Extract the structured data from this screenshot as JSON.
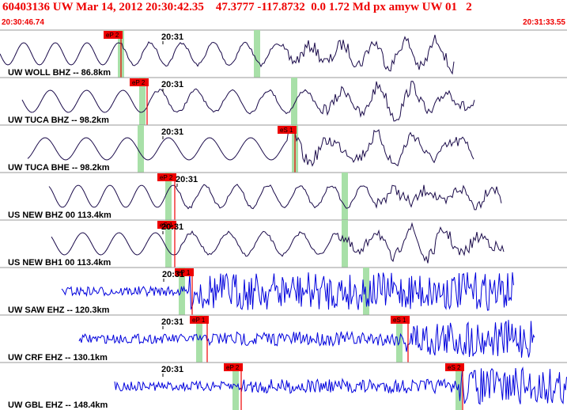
{
  "header": {
    "title": "60403136 UW Mar 14, 2012 20:30:42.35    47.3777 -117.8732  0.0 1.72 Md px amyw UW 01   2",
    "start_time": "20:30:46.74",
    "end_time": "20:31:33.55"
  },
  "colors": {
    "title": "#ee0000",
    "trace_dark": "#1a0a4a",
    "trace_blue": "#0000dd",
    "pick_flag": "#ee0000",
    "phase_window": "#a8e0a8",
    "panel_border": "#999999"
  },
  "traces": [
    {
      "label": "UW WOLL BHZ -- 86.8km",
      "time_mark": "20:31",
      "picks": [
        "eP 2"
      ],
      "color": "dark",
      "style": "smooth"
    },
    {
      "label": "UW TUCA BHZ -- 98.2km",
      "time_mark": "20:31",
      "picks": [
        "eP 2"
      ],
      "color": "dark",
      "style": "smooth"
    },
    {
      "label": "UW TUCA BHE -- 98.2km",
      "time_mark": "20:31",
      "picks": [
        "eS 1"
      ],
      "color": "dark",
      "style": "smooth"
    },
    {
      "label": "US NEW BHZ 00 113.4km",
      "time_mark": "20:31",
      "picks": [
        "eP 2"
      ],
      "color": "dark",
      "style": "smooth"
    },
    {
      "label": "US NEW BH1 00 113.4km",
      "time_mark": "20:31",
      "picks": [
        "eS 1"
      ],
      "color": "dark",
      "style": "smooth"
    },
    {
      "label": "UW SAW EHZ -- 120.3km",
      "time_mark": "20:31",
      "picks": [
        "eP 1"
      ],
      "color": "blue",
      "style": "noisy"
    },
    {
      "label": "UW CRF EHZ -- 130.1km",
      "time_mark": "20:31",
      "picks": [
        "eP 1",
        "eS 1"
      ],
      "color": "blue",
      "style": "noisy"
    },
    {
      "label": "UW GBL EHZ -- 148.4km",
      "time_mark": "20:31",
      "picks": [
        "eP 2",
        "eS 2"
      ],
      "color": "blue",
      "style": "noisy"
    }
  ]
}
